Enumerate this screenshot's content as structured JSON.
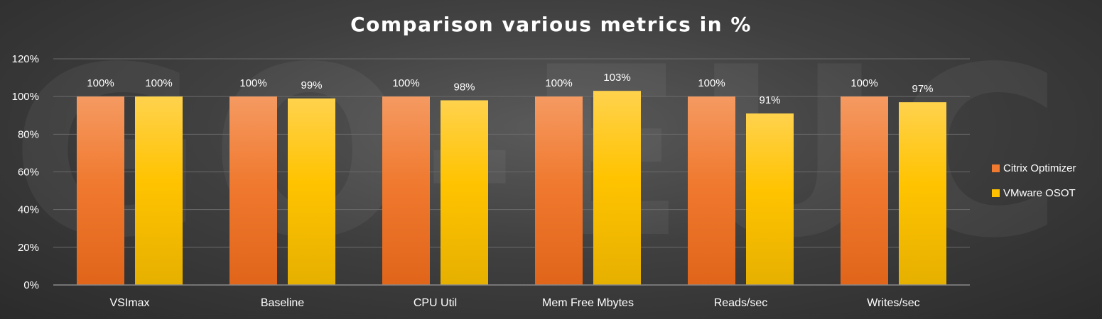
{
  "chart_data": {
    "type": "bar",
    "title": "Comparison various metrics in %",
    "categories": [
      "VSImax",
      "Baseline",
      "CPU Util",
      "Mem Free Mbytes",
      "Reads/sec",
      "Writes/sec"
    ],
    "series": [
      {
        "name": "Citrix Optimizer",
        "values": [
          100,
          100,
          100,
          100,
          100,
          100
        ],
        "labels": [
          "100%",
          "100%",
          "100%",
          "100%",
          "100%",
          "100%"
        ],
        "color": "#F07A30"
      },
      {
        "name": "VMware OSOT",
        "values": [
          100,
          99,
          98,
          103,
          91,
          97
        ],
        "labels": [
          "100%",
          "99%",
          "98%",
          "103%",
          "91%",
          "97%"
        ],
        "color": "#FFC000"
      }
    ],
    "ylim": [
      0,
      120
    ],
    "yticks": [
      0,
      20,
      40,
      60,
      80,
      100,
      120
    ],
    "ytick_labels": [
      "0%",
      "20%",
      "40%",
      "60%",
      "80%",
      "100%",
      "120%"
    ],
    "grid": true,
    "legend_position": "right"
  }
}
